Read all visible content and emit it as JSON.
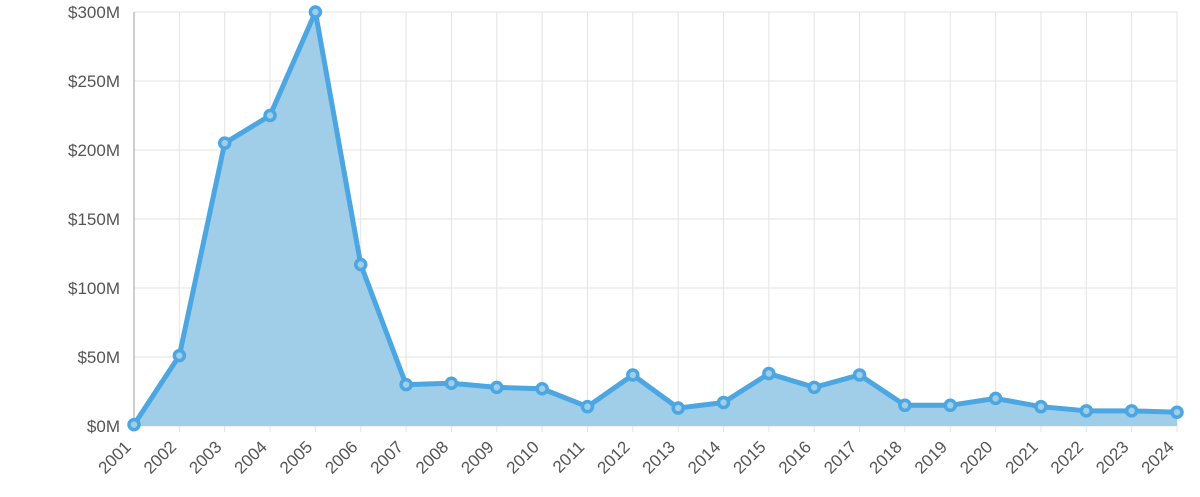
{
  "chart_data": {
    "type": "area",
    "title": "",
    "xlabel": "",
    "ylabel": "",
    "categories": [
      "2001",
      "2002",
      "2003",
      "2004",
      "2005",
      "2006",
      "2007",
      "2008",
      "2009",
      "2010",
      "2011",
      "2012",
      "2013",
      "2014",
      "2015",
      "2016",
      "2017",
      "2018",
      "2019",
      "2020",
      "2021",
      "2022",
      "2023",
      "2024"
    ],
    "series": [
      {
        "values": [
          1,
          51,
          205,
          225,
          300,
          117,
          30,
          31,
          28,
          27,
          14,
          37,
          13,
          17,
          38,
          28,
          37,
          15,
          15,
          20,
          14,
          11,
          11,
          10
        ]
      }
    ],
    "ylim": [
      0,
      300
    ],
    "y_ticks": [
      {
        "value": 0,
        "label": "$0M"
      },
      {
        "value": 50,
        "label": "$50M"
      },
      {
        "value": 100,
        "label": "$100M"
      },
      {
        "value": 150,
        "label": "$150M"
      },
      {
        "value": 200,
        "label": "$200M"
      },
      {
        "value": 250,
        "label": "$250M"
      },
      {
        "value": 300,
        "label": "$300M"
      }
    ],
    "grid": true,
    "legend": "none",
    "colors": {
      "line": "#4ba6e1",
      "fill": "#a0cde7",
      "grid": "#e3e3e3"
    }
  }
}
